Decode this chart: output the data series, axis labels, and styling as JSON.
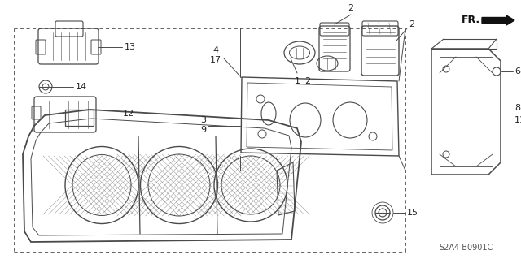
{
  "bg_color": "#ffffff",
  "lc": "#4a4a4a",
  "tc": "#222222",
  "diagram_code": "S2A4-B0901C",
  "fig_w": 6.4,
  "fig_h": 3.19,
  "dpi": 100
}
